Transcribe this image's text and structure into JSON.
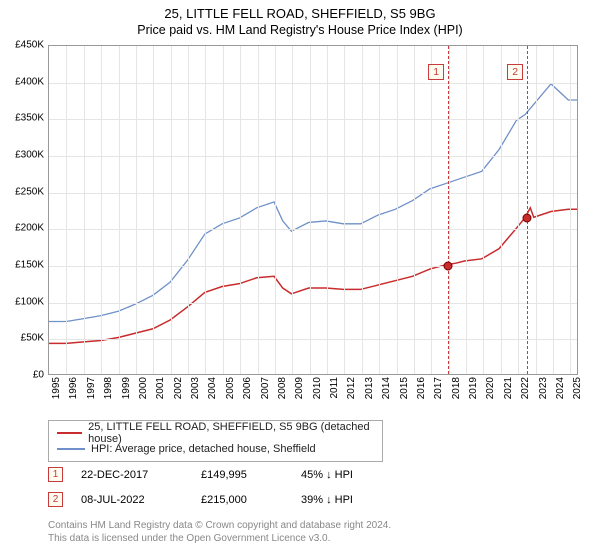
{
  "title": "25, LITTLE FELL ROAD, SHEFFIELD, S5 9BG",
  "subtitle": "Price paid vs. HM Land Registry's House Price Index (HPI)",
  "chart": {
    "type": "line",
    "xlim": [
      1995,
      2025.5
    ],
    "ylim": [
      0,
      450000
    ],
    "ytick_step": 50000,
    "yticks_labels": [
      "£0",
      "£50K",
      "£100K",
      "£150K",
      "£200K",
      "£250K",
      "£300K",
      "£350K",
      "£400K",
      "£450K"
    ],
    "xticks": [
      1995,
      1996,
      1997,
      1998,
      1999,
      2000,
      2001,
      2002,
      2003,
      2004,
      2005,
      2006,
      2007,
      2008,
      2009,
      2010,
      2011,
      2012,
      2013,
      2014,
      2015,
      2016,
      2017,
      2018,
      2019,
      2020,
      2021,
      2022,
      2023,
      2024,
      2025
    ],
    "background_color": "#ffffff",
    "grid_color": "#e5e5e5",
    "series": [
      {
        "name": "price_paid",
        "label": "25, LITTLE FELL ROAD, SHEFFIELD, S5 9BG (detached house)",
        "color": "#c82c2c",
        "line_width": 1.5,
        "x": [
          1995,
          1996,
          1997,
          1998,
          1999,
          2000,
          2001,
          2002,
          2003,
          2004,
          2005,
          2006,
          2007,
          2008,
          2008.5,
          2009,
          2010,
          2011,
          2012,
          2013,
          2014,
          2015,
          2016,
          2017,
          2017.97,
          2018.5,
          2019,
          2020,
          2021,
          2022,
          2022.52,
          2022.8,
          2023,
          2024,
          2025,
          2025.5
        ],
        "y": [
          42000,
          42000,
          44000,
          46000,
          50000,
          56000,
          62000,
          74000,
          92000,
          112000,
          120000,
          124000,
          132000,
          134000,
          118000,
          110000,
          118000,
          118000,
          116000,
          116000,
          122000,
          128000,
          134000,
          144000,
          150000,
          152000,
          155000,
          158000,
          172000,
          200000,
          215000,
          228000,
          215000,
          223000,
          226000,
          226000
        ]
      },
      {
        "name": "hpi",
        "label": "HPI: Average price, detached house, Sheffield",
        "color": "#6f90c8",
        "line_width": 1.3,
        "x": [
          1995,
          1996,
          1997,
          1998,
          1999,
          2000,
          2001,
          2002,
          2003,
          2004,
          2005,
          2006,
          2007,
          2008,
          2008.5,
          2009,
          2010,
          2011,
          2012,
          2013,
          2014,
          2015,
          2016,
          2017,
          2018,
          2019,
          2020,
          2021,
          2022,
          2022.5,
          2023,
          2024,
          2025,
          2025.5
        ],
        "y": [
          72000,
          72000,
          76000,
          80000,
          86000,
          96000,
          108000,
          126000,
          156000,
          192000,
          206000,
          214000,
          228000,
          236000,
          210000,
          196000,
          208000,
          210000,
          206000,
          206000,
          218000,
          226000,
          238000,
          254000,
          262000,
          270000,
          278000,
          308000,
          348000,
          356000,
          370000,
          398000,
          376000,
          376000
        ]
      }
    ],
    "vlines": [
      {
        "x": 2017.97,
        "label": "1"
      },
      {
        "x": 2022.52,
        "label": "2"
      }
    ],
    "markers": [
      {
        "x": 2017.97,
        "y": 149995
      },
      {
        "x": 2022.52,
        "y": 215000
      }
    ],
    "vline_color": "#c93a3a"
  },
  "legend": {
    "rows": [
      {
        "color": "#c82c2c",
        "label": "25, LITTLE FELL ROAD, SHEFFIELD, S5 9BG (detached house)"
      },
      {
        "color": "#6f90c8",
        "label": "HPI: Average price, detached house, Sheffield"
      }
    ]
  },
  "sales": [
    {
      "badge": "1",
      "date": "22-DEC-2017",
      "price": "£149,995",
      "delta": "45% ↓ HPI"
    },
    {
      "badge": "2",
      "date": "08-JUL-2022",
      "price": "£215,000",
      "delta": "39% ↓ HPI"
    }
  ],
  "attribution": {
    "line1": "Contains HM Land Registry data © Crown copyright and database right 2024.",
    "line2": "This data is licensed under the Open Government Licence v3.0."
  }
}
